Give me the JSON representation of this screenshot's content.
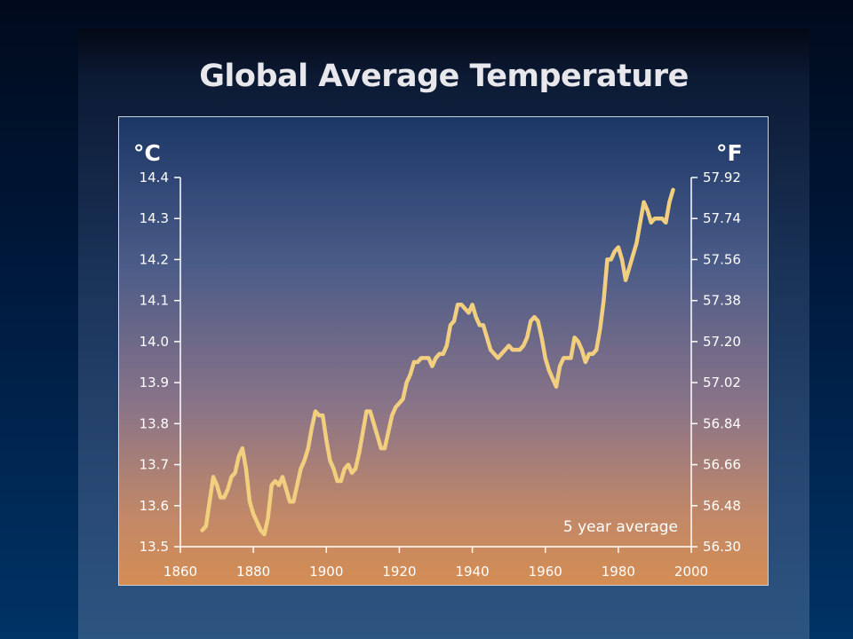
{
  "slide": {
    "background": "#001a3e"
  },
  "chart_data": {
    "type": "line",
    "title": "Global Average Temperature",
    "ylabel_left": "°C",
    "ylabel_right": "°F",
    "annotation": "5 year average",
    "xlim": [
      1860,
      2000
    ],
    "ylim": [
      13.5,
      14.4
    ],
    "x_ticks": [
      "1860",
      "1880",
      "1900",
      "1920",
      "1940",
      "1960",
      "1980",
      "2000"
    ],
    "y_ticks_left": [
      "13.5",
      "13.6",
      "13.7",
      "13.8",
      "13.9",
      "14.0",
      "14.1",
      "14.2",
      "14.3",
      "14.4"
    ],
    "y_ticks_right": [
      "56.30",
      "56.48",
      "56.66",
      "56.84",
      "57.02",
      "57.20",
      "57.38",
      "57.56",
      "57.74",
      "57.92"
    ],
    "grid": false,
    "line_color": "#f2cf7e",
    "series": [
      {
        "x": [
          1866,
          1867,
          1868,
          1869,
          1870,
          1871,
          1872,
          1873,
          1874,
          1875,
          1876,
          1877,
          1878,
          1879,
          1880,
          1881,
          1882,
          1883,
          1884,
          1885,
          1886,
          1887,
          1888,
          1889,
          1890,
          1891,
          1892,
          1893,
          1894,
          1895,
          1896,
          1897,
          1898,
          1899,
          1900,
          1901,
          1902,
          1903,
          1904,
          1905,
          1906,
          1907,
          1908,
          1909,
          1910,
          1911,
          1912,
          1913,
          1914,
          1915,
          1916,
          1917,
          1918,
          1919,
          1920,
          1921,
          1922,
          1923,
          1924,
          1925,
          1926,
          1927,
          1928,
          1929,
          1930,
          1931,
          1932,
          1933,
          1934,
          1935,
          1936,
          1937,
          1938,
          1939,
          1940,
          1941,
          1942,
          1943,
          1944,
          1945,
          1946,
          1947,
          1948,
          1949,
          1950,
          1951,
          1952,
          1953,
          1954,
          1955,
          1956,
          1957,
          1958,
          1959,
          1960,
          1961,
          1962,
          1963,
          1964,
          1965,
          1966,
          1967,
          1968,
          1969,
          1970,
          1971,
          1972,
          1973,
          1974,
          1975,
          1976,
          1977,
          1978,
          1979,
          1980,
          1981,
          1982,
          1983,
          1984,
          1985,
          1986,
          1987,
          1988,
          1989,
          1990,
          1991,
          1992,
          1993,
          1994,
          1995
        ],
        "values": [
          13.54,
          13.55,
          13.61,
          13.67,
          13.65,
          13.62,
          13.62,
          13.64,
          13.67,
          13.68,
          13.72,
          13.74,
          13.69,
          13.61,
          13.58,
          13.56,
          13.54,
          13.53,
          13.57,
          13.65,
          13.66,
          13.65,
          13.67,
          13.64,
          13.61,
          13.61,
          13.65,
          13.69,
          13.71,
          13.74,
          13.79,
          13.83,
          13.82,
          13.82,
          13.76,
          13.71,
          13.69,
          13.66,
          13.66,
          13.69,
          13.7,
          13.68,
          13.69,
          13.73,
          13.78,
          13.83,
          13.83,
          13.8,
          13.77,
          13.74,
          13.74,
          13.78,
          13.82,
          13.84,
          13.85,
          13.86,
          13.9,
          13.92,
          13.95,
          13.95,
          13.96,
          13.96,
          13.96,
          13.94,
          13.96,
          13.97,
          13.97,
          13.99,
          14.04,
          14.05,
          14.09,
          14.09,
          14.08,
          14.07,
          14.09,
          14.06,
          14.04,
          14.04,
          14.01,
          13.98,
          13.97,
          13.96,
          13.97,
          13.98,
          13.99,
          13.98,
          13.98,
          13.98,
          13.99,
          14.01,
          14.05,
          14.06,
          14.05,
          14.01,
          13.96,
          13.93,
          13.91,
          13.89,
          13.94,
          13.96,
          13.96,
          13.96,
          14.01,
          14.0,
          13.98,
          13.95,
          13.97,
          13.97,
          13.98,
          14.03,
          14.1,
          14.2,
          14.2,
          14.22,
          14.23,
          14.2,
          14.15,
          14.18,
          14.21,
          14.24,
          14.29,
          14.34,
          14.32,
          14.29,
          14.3,
          14.3,
          14.3,
          14.29,
          14.34,
          14.37
        ]
      }
    ]
  }
}
